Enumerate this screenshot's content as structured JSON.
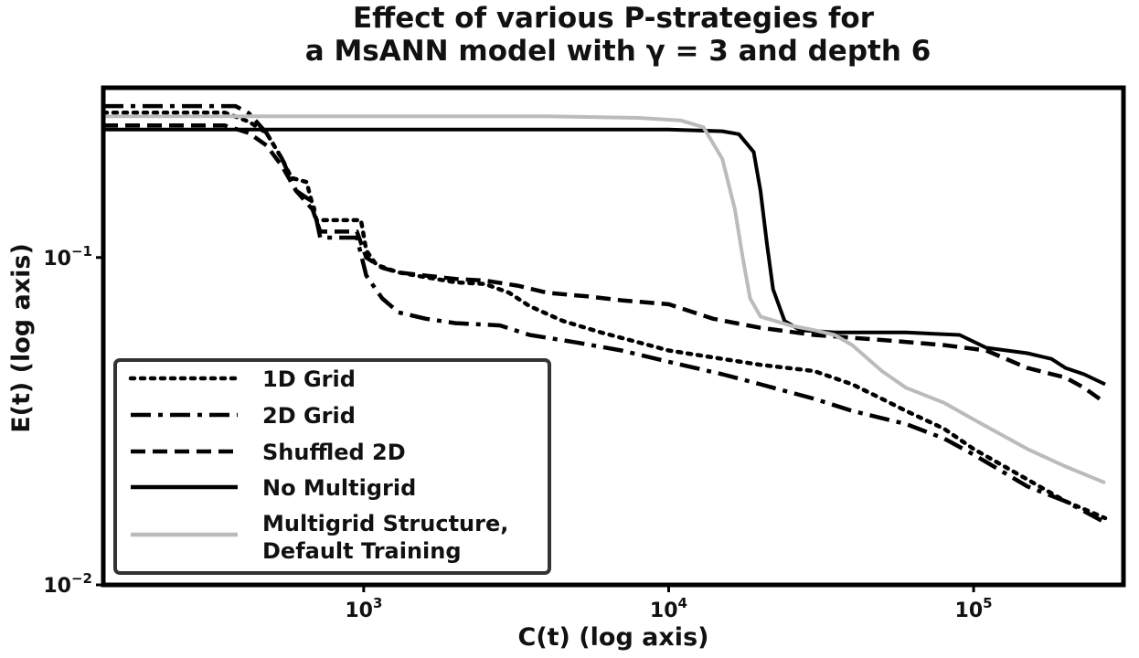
{
  "chart_data": {
    "type": "line",
    "title": [
      "Effect of various P-strategies for",
      "a MsANN model with γ = 3 and depth 6"
    ],
    "xlabel": "C(t) (log axis)",
    "ylabel": "E(t) (log axis)",
    "xscale": "log",
    "yscale": "log",
    "xlim": [
      140,
      310000
    ],
    "ylim": [
      0.01,
      0.33
    ],
    "xticks": [
      {
        "value": 1000,
        "base": "10",
        "exp": "3"
      },
      {
        "value": 10000,
        "base": "10",
        "exp": "4"
      },
      {
        "value": 100000,
        "base": "10",
        "exp": "5"
      }
    ],
    "yticks": [
      {
        "value": 0.1,
        "base": "10",
        "exp": "−1"
      },
      {
        "value": 0.01,
        "base": "10",
        "exp": "−2"
      }
    ],
    "legend_position": "lower-left",
    "series": [
      {
        "name": "1D Grid",
        "style": "dotted",
        "color": "#000000",
        "points": [
          [
            140,
            0.277
          ],
          [
            350,
            0.277
          ],
          [
            420,
            0.26
          ],
          [
            480,
            0.24
          ],
          [
            540,
            0.2
          ],
          [
            580,
            0.175
          ],
          [
            650,
            0.17
          ],
          [
            700,
            0.13
          ],
          [
            800,
            0.13
          ],
          [
            900,
            0.13
          ],
          [
            980,
            0.13
          ],
          [
            1020,
            0.105
          ],
          [
            1100,
            0.095
          ],
          [
            1300,
            0.09
          ],
          [
            1600,
            0.087
          ],
          [
            2000,
            0.084
          ],
          [
            2500,
            0.083
          ],
          [
            3000,
            0.078
          ],
          [
            3500,
            0.071
          ],
          [
            4500,
            0.064
          ],
          [
            6000,
            0.059
          ],
          [
            8000,
            0.055
          ],
          [
            10000,
            0.052
          ],
          [
            15000,
            0.049
          ],
          [
            20000,
            0.047
          ],
          [
            30000,
            0.045
          ],
          [
            40000,
            0.041
          ],
          [
            50000,
            0.037
          ],
          [
            60000,
            0.034
          ],
          [
            80000,
            0.03
          ],
          [
            100000,
            0.026
          ],
          [
            150000,
            0.021
          ],
          [
            200000,
            0.018
          ],
          [
            270000,
            0.016
          ]
        ]
      },
      {
        "name": "2D Grid",
        "style": "dashdot",
        "color": "#000000",
        "points": [
          [
            140,
            0.29
          ],
          [
            380,
            0.29
          ],
          [
            420,
            0.276
          ],
          [
            480,
            0.24
          ],
          [
            540,
            0.2
          ],
          [
            600,
            0.16
          ],
          [
            680,
            0.148
          ],
          [
            720,
            0.115
          ],
          [
            800,
            0.115
          ],
          [
            950,
            0.115
          ],
          [
            1020,
            0.088
          ],
          [
            1150,
            0.075
          ],
          [
            1300,
            0.068
          ],
          [
            1600,
            0.065
          ],
          [
            2000,
            0.063
          ],
          [
            2800,
            0.062
          ],
          [
            3500,
            0.058
          ],
          [
            5000,
            0.055
          ],
          [
            7000,
            0.052
          ],
          [
            10000,
            0.048
          ],
          [
            15000,
            0.044
          ],
          [
            20000,
            0.041
          ],
          [
            30000,
            0.037
          ],
          [
            40000,
            0.034
          ],
          [
            60000,
            0.031
          ],
          [
            80000,
            0.028
          ],
          [
            100000,
            0.025
          ],
          [
            150000,
            0.02
          ],
          [
            200000,
            0.018
          ],
          [
            270000,
            0.0155
          ]
        ]
      },
      {
        "name": "Shuffled 2D",
        "style": "dashed",
        "color": "#000000",
        "points": [
          [
            140,
            0.253
          ],
          [
            350,
            0.253
          ],
          [
            420,
            0.24
          ],
          [
            480,
            0.22
          ],
          [
            540,
            0.19
          ],
          [
            600,
            0.16
          ],
          [
            680,
            0.14
          ],
          [
            720,
            0.12
          ],
          [
            800,
            0.12
          ],
          [
            950,
            0.12
          ],
          [
            1020,
            0.1
          ],
          [
            1150,
            0.093
          ],
          [
            1300,
            0.09
          ],
          [
            1600,
            0.088
          ],
          [
            2000,
            0.086
          ],
          [
            2500,
            0.085
          ],
          [
            3200,
            0.082
          ],
          [
            4000,
            0.078
          ],
          [
            5500,
            0.076
          ],
          [
            7000,
            0.074
          ],
          [
            10000,
            0.072
          ],
          [
            14000,
            0.065
          ],
          [
            20000,
            0.061
          ],
          [
            30000,
            0.058
          ],
          [
            50000,
            0.056
          ],
          [
            80000,
            0.054
          ],
          [
            110000,
            0.052
          ],
          [
            150000,
            0.046
          ],
          [
            200000,
            0.043
          ],
          [
            230000,
            0.04
          ],
          [
            270000,
            0.036
          ]
        ]
      },
      {
        "name": "No Multigrid",
        "style": "solid",
        "color": "#000000",
        "points": [
          [
            140,
            0.246
          ],
          [
            10000,
            0.246
          ],
          [
            15000,
            0.243
          ],
          [
            17000,
            0.238
          ],
          [
            19000,
            0.21
          ],
          [
            20000,
            0.16
          ],
          [
            21000,
            0.11
          ],
          [
            22000,
            0.08
          ],
          [
            24000,
            0.064
          ],
          [
            27000,
            0.06
          ],
          [
            35000,
            0.059
          ],
          [
            60000,
            0.059
          ],
          [
            90000,
            0.058
          ],
          [
            110000,
            0.053
          ],
          [
            150000,
            0.051
          ],
          [
            180000,
            0.049
          ],
          [
            200000,
            0.046
          ],
          [
            230000,
            0.044
          ],
          [
            270000,
            0.041
          ]
        ]
      },
      {
        "name": "Multigrid Structure,\nDefault Training",
        "name_lines": [
          "Multigrid Structure,",
          "Default Training"
        ],
        "style": "solid",
        "color": "#bbbbbb",
        "points": [
          [
            140,
            0.27
          ],
          [
            4000,
            0.27
          ],
          [
            8000,
            0.267
          ],
          [
            11000,
            0.262
          ],
          [
            13000,
            0.25
          ],
          [
            15000,
            0.2
          ],
          [
            16500,
            0.14
          ],
          [
            17500,
            0.1
          ],
          [
            18500,
            0.075
          ],
          [
            20000,
            0.066
          ],
          [
            25000,
            0.062
          ],
          [
            30000,
            0.06
          ],
          [
            35000,
            0.058
          ],
          [
            40000,
            0.054
          ],
          [
            50000,
            0.045
          ],
          [
            60000,
            0.04
          ],
          [
            80000,
            0.036
          ],
          [
            100000,
            0.032
          ],
          [
            150000,
            0.026
          ],
          [
            200000,
            0.023
          ],
          [
            270000,
            0.0205
          ]
        ]
      }
    ]
  }
}
